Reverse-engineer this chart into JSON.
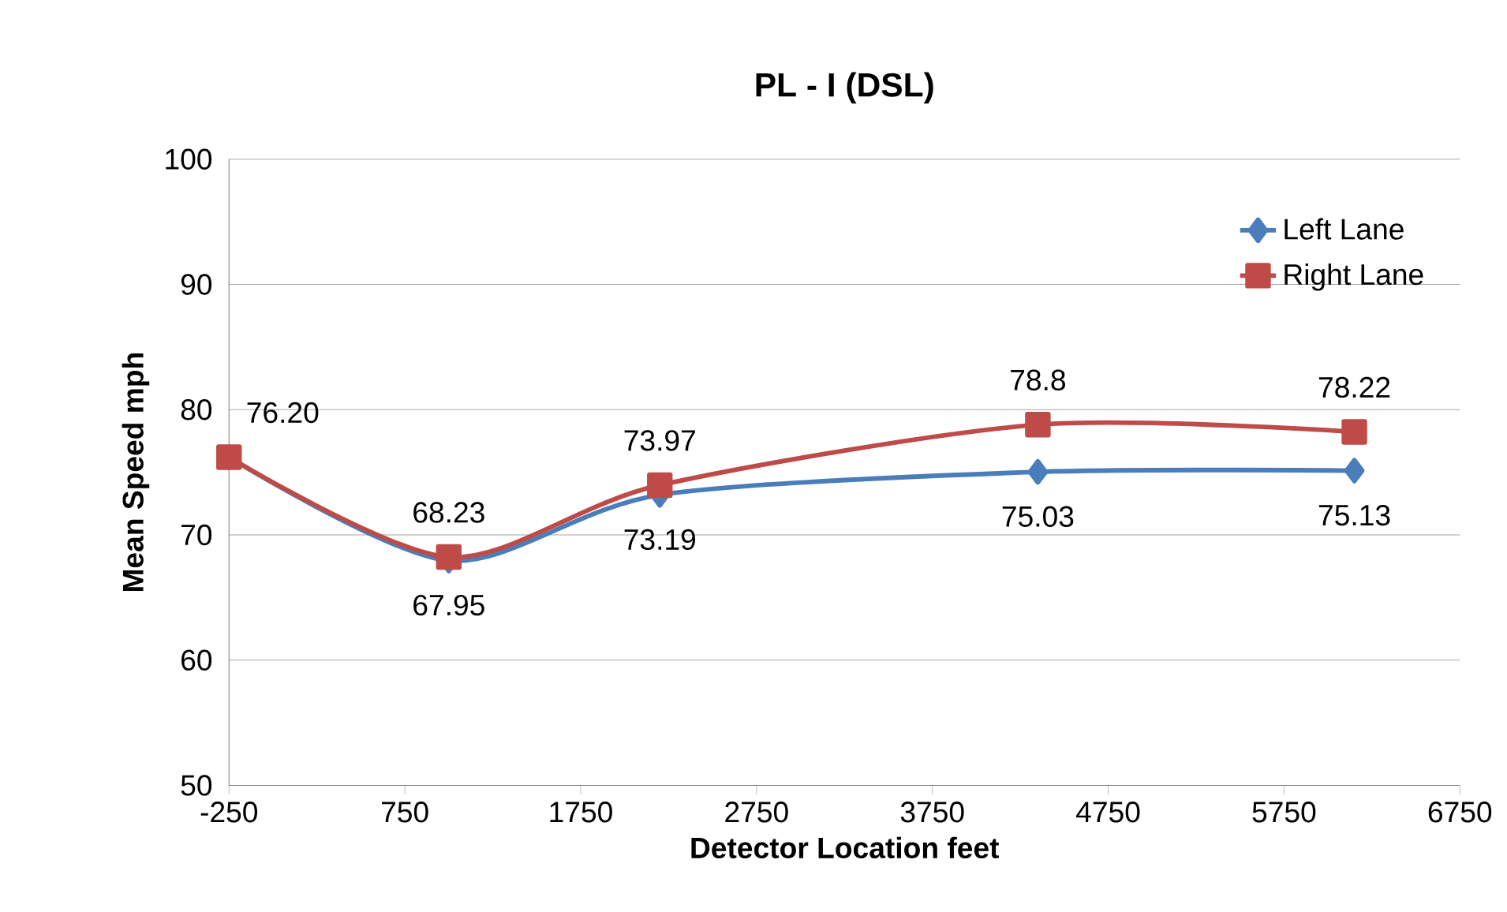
{
  "chart_data": {
    "type": "line",
    "title": "PL - I (DSL)",
    "xlabel": "Detector Location feet",
    "ylabel": "Mean Speed mph",
    "xlim": [
      -250,
      6750
    ],
    "xticks": [
      -250,
      750,
      1750,
      2750,
      3750,
      4750,
      5750,
      6750
    ],
    "ylim": [
      50,
      100
    ],
    "yticks": [
      50,
      60,
      70,
      80,
      90,
      100
    ],
    "grid": "y",
    "legend": "top right",
    "series": [
      {
        "name": "Left Lane",
        "color": "#4a7ebb",
        "marker": "diamond",
        "x": [
          -250,
          1000,
          2200,
          4350,
          6150
        ],
        "values": [
          76.2,
          67.95,
          73.19,
          75.03,
          75.13
        ],
        "value_labels": [
          null,
          "67.95",
          "73.19",
          "75.03",
          "75.13"
        ]
      },
      {
        "name": "Right Lane",
        "color": "#be4b48",
        "marker": "square",
        "x": [
          -250,
          1000,
          2200,
          4350,
          6150
        ],
        "values": [
          76.2,
          68.23,
          73.97,
          78.8,
          78.22
        ],
        "value_labels": [
          "76.20",
          "68.23",
          "73.97",
          "78.8",
          "78.22"
        ]
      }
    ]
  }
}
